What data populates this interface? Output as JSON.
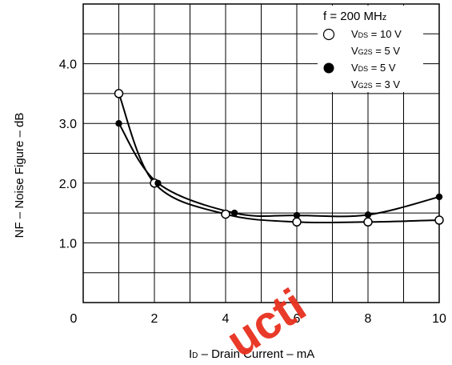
{
  "chart_data": {
    "type": "line",
    "title": "",
    "xlabel": {
      "prefix": "I",
      "sub": "D",
      "rest": " – Drain Current   – mA"
    },
    "ylabel": "NF – Noise Figure – dB",
    "xlim": [
      0,
      10
    ],
    "ylim": [
      0,
      5
    ],
    "x_ticks": [
      "0",
      "2",
      "4",
      "6",
      "8",
      "10"
    ],
    "y_ticks": [
      "1.0",
      "2.0",
      "3.0",
      "4.0"
    ],
    "grid": true,
    "legend_position": "top-right",
    "legend": {
      "title": {
        "main": "f = 200 MH",
        "sub": "z"
      },
      "entries": [
        {
          "marker": "open",
          "lines": [
            {
              "pre": "V",
              "sub": "DS",
              "post": " = 10 V"
            },
            {
              "pre": "V",
              "sub": "G2S",
              "post": " = 5 V"
            }
          ]
        },
        {
          "marker": "filled",
          "lines": [
            {
              "pre": "V",
              "sub": "DS",
              "post": " = 5 V"
            },
            {
              "pre": "V",
              "sub": "G2S",
              "post": " = 3 V"
            }
          ]
        }
      ]
    },
    "series": [
      {
        "marker": "open",
        "x": [
          1,
          2,
          4,
          6,
          8,
          10
        ],
        "y": [
          3.5,
          2.0,
          1.48,
          1.35,
          1.35,
          1.38
        ]
      },
      {
        "marker": "filled",
        "x": [
          1,
          2.1,
          4.25,
          6,
          8,
          10
        ],
        "y": [
          3.0,
          2.0,
          1.5,
          1.46,
          1.47,
          1.77
        ]
      }
    ]
  },
  "watermark": "ucti"
}
